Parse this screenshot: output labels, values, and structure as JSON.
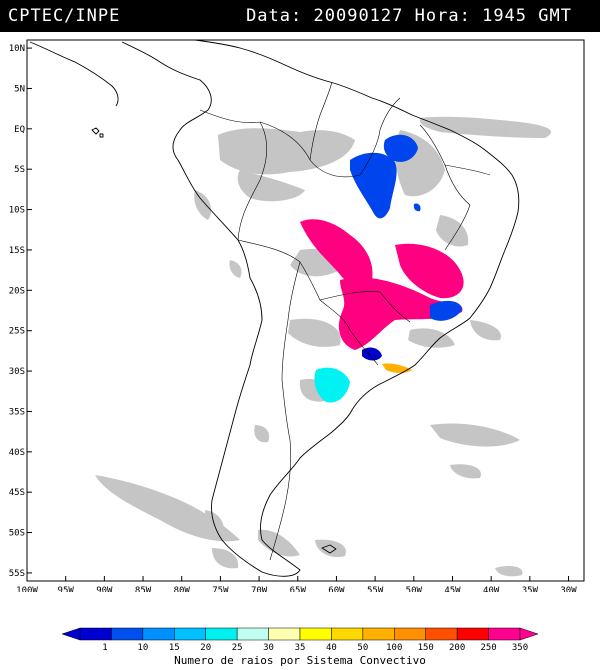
{
  "header": {
    "source": "CPTEC/INPE",
    "date_label": "Data:",
    "date": "20090127",
    "hour_label": "Hora:",
    "hour": "1945",
    "tz": "GMT"
  },
  "map": {
    "lat_ticks": [
      "10N",
      "5N",
      "EQ",
      "5S",
      "10S",
      "15S",
      "20S",
      "25S",
      "30S",
      "35S",
      "40S",
      "45S",
      "50S",
      "55S"
    ],
    "lon_ticks": [
      "100W",
      "95W",
      "90W",
      "85W",
      "80W",
      "75W",
      "70W",
      "65W",
      "60W",
      "55W",
      "50W",
      "45W",
      "40W",
      "35W",
      "30W"
    ],
    "lat_range": [
      11,
      -56
    ],
    "lon_range": [
      -100,
      -28
    ]
  },
  "legend": {
    "labels": [
      "1",
      "10",
      "15",
      "20",
      "25",
      "30",
      "35",
      "40",
      "50",
      "100",
      "150",
      "200",
      "250",
      "350"
    ],
    "colors": [
      "#0000d0",
      "#0050f0",
      "#0090ff",
      "#00c0ff",
      "#00f0f0",
      "#c0fff0",
      "#ffffb0",
      "#ffff00",
      "#ffd800",
      "#ffb000",
      "#ff9000",
      "#ff5000",
      "#ff0000",
      "#ff0090"
    ],
    "caption": "Numero de raios por Sistema Convectivo"
  },
  "colors": {
    "cloud": "#bcbcbc",
    "pink": "#ff0080",
    "blue": "#0044ee",
    "dark_blue": "#0000c8",
    "cyan": "#00f2f2",
    "orange": "#ffb000"
  }
}
